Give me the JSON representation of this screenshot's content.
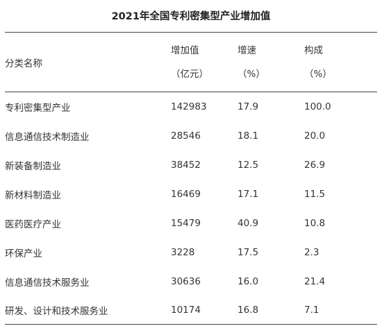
{
  "title": "2021年全国专利密集型产业增加值",
  "table": {
    "headers": [
      {
        "label": "分类名称",
        "unit": ""
      },
      {
        "label": "增加值",
        "unit": "（亿元）"
      },
      {
        "label": "增速",
        "unit": "（%）"
      },
      {
        "label": "构成",
        "unit": "（%）"
      }
    ],
    "rows": [
      {
        "name": "专利密集型产业",
        "value": "142983",
        "growth": "17.9",
        "share": "100.0"
      },
      {
        "name": "信息通信技术制造业",
        "value": "28546",
        "growth": "18.1",
        "share": "20.0"
      },
      {
        "name": "新装备制造业",
        "value": "38452",
        "growth": "12.5",
        "share": "26.9"
      },
      {
        "name": "新材料制造业",
        "value": "16469",
        "growth": "17.1",
        "share": "11.5"
      },
      {
        "name": "医药医疗产业",
        "value": "15479",
        "growth": "40.9",
        "share": "10.8"
      },
      {
        "name": "环保产业",
        "value": "3228",
        "growth": "17.5",
        "share": "2.3"
      },
      {
        "name": "信息通信技术服务业",
        "value": "30636",
        "growth": "16.0",
        "share": "21.4"
      },
      {
        "name": "研发、设计和技术服务业",
        "value": "10174",
        "growth": "16.8",
        "share": "7.1"
      }
    ]
  }
}
